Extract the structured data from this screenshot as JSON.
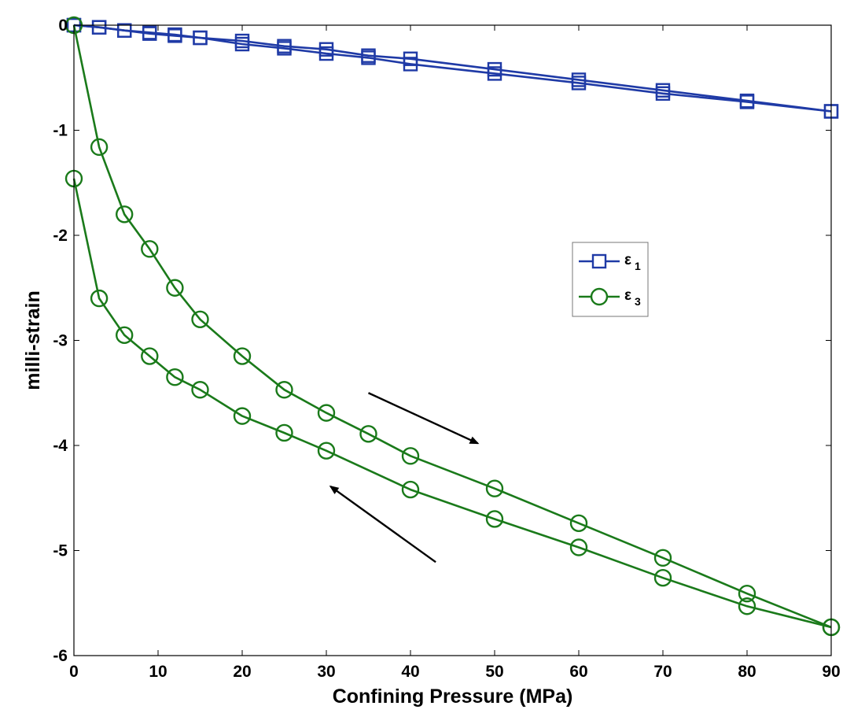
{
  "chart_data": {
    "type": "line",
    "title": "",
    "xlabel": "Confining Pressure (MPa)",
    "ylabel": "milli-strain",
    "xlim": [
      0,
      90
    ],
    "ylim": [
      -6,
      0
    ],
    "xticks": [
      0,
      10,
      20,
      30,
      40,
      50,
      60,
      70,
      80,
      90
    ],
    "yticks": [
      0,
      -1,
      -2,
      -3,
      -4,
      -5,
      -6
    ],
    "xtick_labels": [
      "0",
      "10",
      "20",
      "30",
      "40",
      "50",
      "60",
      "70",
      "80",
      "90"
    ],
    "ytick_labels": [
      "0",
      "-1",
      "-2",
      "-3",
      "-4",
      "-5",
      "-6"
    ],
    "grid": false,
    "legend_position": "center-right",
    "series": [
      {
        "name": "ε1 loading",
        "legend_label": "ε1",
        "color": "#1f3aa6",
        "marker": "square",
        "x": [
          0,
          3,
          6,
          9,
          12,
          15,
          20,
          25,
          30,
          35,
          40,
          50,
          60,
          70,
          80,
          90
        ],
        "y": [
          0,
          -0.02,
          -0.05,
          -0.08,
          -0.1,
          -0.12,
          -0.18,
          -0.22,
          -0.27,
          -0.31,
          -0.37,
          -0.46,
          -0.55,
          -0.65,
          -0.73,
          -0.82
        ]
      },
      {
        "name": "ε1 unloading",
        "legend_label": "ε1",
        "color": "#1f3aa6",
        "marker": "square",
        "x": [
          90,
          80,
          70,
          60,
          50,
          40,
          35,
          30,
          25,
          20,
          15,
          12,
          9,
          6,
          3,
          0
        ],
        "y": [
          -0.82,
          -0.72,
          -0.62,
          -0.52,
          -0.42,
          -0.32,
          -0.29,
          -0.23,
          -0.2,
          -0.15,
          -0.12,
          -0.09,
          -0.07,
          -0.05,
          -0.02,
          0
        ]
      },
      {
        "name": "ε3 loading",
        "legend_label": "ε3",
        "color": "#1a7a1a",
        "marker": "circle",
        "x": [
          0,
          3,
          6,
          9,
          12,
          15,
          20,
          25,
          30,
          35,
          40,
          50,
          60,
          70,
          80,
          90
        ],
        "y": [
          0,
          -1.16,
          -1.8,
          -2.13,
          -2.5,
          -2.8,
          -3.15,
          -3.47,
          -3.69,
          -3.89,
          -4.1,
          -4.41,
          -4.74,
          -5.07,
          -5.41,
          -5.73
        ]
      },
      {
        "name": "ε3 unloading",
        "legend_label": "ε3",
        "color": "#1a7a1a",
        "marker": "circle",
        "x": [
          90,
          80,
          70,
          60,
          50,
          40,
          30,
          25,
          20,
          15,
          12,
          9,
          6,
          3,
          0
        ],
        "y": [
          -5.73,
          -5.53,
          -5.26,
          -4.97,
          -4.7,
          -4.42,
          -4.05,
          -3.88,
          -3.72,
          -3.47,
          -3.35,
          -3.15,
          -2.95,
          -2.6,
          -1.46
        ]
      }
    ],
    "legend": [
      {
        "label": "ε",
        "sub": "1",
        "color": "#1f3aa6",
        "marker": "square"
      },
      {
        "label": "ε",
        "sub": "3",
        "color": "#1a7a1a",
        "marker": "circle"
      }
    ],
    "annotations": [
      {
        "type": "arrow",
        "direction": "down-right",
        "meaning": "loading",
        "from": [
          35,
          -3.5
        ],
        "to": [
          48,
          -3.98
        ]
      },
      {
        "type": "arrow",
        "direction": "up-left",
        "meaning": "unloading",
        "from": [
          43,
          -5.11
        ],
        "to": [
          30.5,
          -4.39
        ]
      }
    ]
  }
}
